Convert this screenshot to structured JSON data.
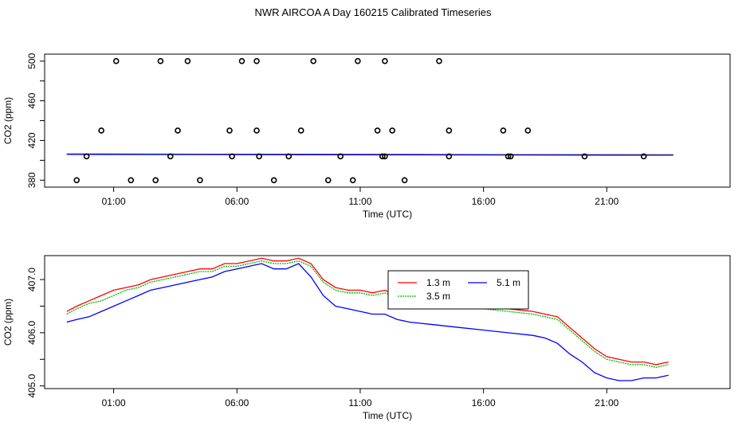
{
  "title": "NWR AIRCOA A  Day 160215  Calibrated Timeseries",
  "chart_data": [
    {
      "type": "scatter",
      "xlabel": "Time (UTC)",
      "ylabel": "CO2 (ppm)",
      "x_ticks": [
        "01:00",
        "06:00",
        "11:00",
        "16:00",
        "21:00"
      ],
      "x_tick_hours": [
        1,
        6,
        11,
        16,
        21
      ],
      "y_ticks": [
        380,
        420,
        460,
        500
      ],
      "y_minor_ticks": [
        400,
        440,
        480
      ],
      "ylim": [
        373,
        507
      ],
      "xlim": [
        -1.8,
        26.0
      ],
      "points_500": [
        1.1,
        2.9,
        4.0,
        6.2,
        6.8,
        9.1,
        10.9,
        12.0,
        14.2
      ],
      "points_430": [
        0.5,
        3.6,
        5.7,
        6.8,
        8.6,
        11.7,
        12.3,
        14.6,
        16.8,
        17.8
      ],
      "points_404": [
        -0.1,
        3.3,
        5.8,
        6.9,
        8.1,
        10.2,
        11.9,
        12.0,
        14.6,
        17.0,
        17.1,
        20.1,
        22.5
      ],
      "points_380": [
        -0.5,
        1.7,
        2.7,
        4.5,
        7.5,
        9.7,
        10.7,
        12.8
      ],
      "series": [
        {
          "name": "1.3 m",
          "color": "#ff0000",
          "x": [
            -0.9,
            23.7
          ],
          "y": [
            406.4,
            405.6
          ]
        },
        {
          "name": "3.5 m",
          "color": "#00bb00",
          "x": [
            -0.9,
            23.7
          ],
          "y": [
            406.3,
            405.5
          ]
        },
        {
          "name": "5.1 m",
          "color": "#0000ff",
          "x": [
            -0.9,
            23.7
          ],
          "y": [
            406.0,
            405.2
          ]
        }
      ]
    },
    {
      "type": "line",
      "xlabel": "Time (UTC)",
      "ylabel": "CO2 (ppm)",
      "x_ticks": [
        "01:00",
        "06:00",
        "11:00",
        "16:00",
        "21:00"
      ],
      "x_tick_hours": [
        1,
        6,
        11,
        16,
        21
      ],
      "y_ticks": [
        405.0,
        406.0,
        407.0
      ],
      "y_tick_labels": [
        "405.0",
        "406.0",
        "407.0"
      ],
      "y_minor_ticks": [
        405.5,
        406.5
      ],
      "ylim": [
        404.95,
        407.45
      ],
      "xlim": [
        -1.8,
        26.0
      ],
      "legend": {
        "position": "top-center",
        "entries": [
          "1.3 m",
          "3.5 m",
          "5.1 m"
        ]
      },
      "series": [
        {
          "name": "1.3 m",
          "color": "#ff0000",
          "x": [
            -0.9,
            -0.5,
            0,
            0.5,
            1,
            1.5,
            2,
            2.5,
            3,
            3.5,
            4,
            4.5,
            5,
            5.5,
            6,
            6.5,
            7,
            7.5,
            8,
            8.5,
            9,
            9.5,
            10,
            10.5,
            11,
            11.5,
            12,
            12.5,
            13,
            14,
            15,
            16,
            17,
            18,
            18.5,
            19,
            19.5,
            20,
            20.5,
            21,
            21.5,
            22,
            22.5,
            23,
            23.5
          ],
          "y": [
            406.4,
            406.5,
            406.6,
            406.7,
            406.8,
            406.85,
            406.9,
            407.0,
            407.05,
            407.1,
            407.15,
            407.2,
            407.2,
            407.3,
            407.3,
            407.35,
            407.4,
            407.35,
            407.35,
            407.4,
            407.3,
            407.0,
            406.85,
            406.8,
            406.8,
            406.75,
            406.8,
            406.7,
            406.65,
            406.6,
            406.6,
            406.5,
            406.45,
            406.4,
            406.35,
            406.3,
            406.1,
            405.9,
            405.7,
            405.55,
            405.5,
            405.45,
            405.45,
            405.4,
            405.45
          ]
        },
        {
          "name": "3.5 m",
          "color": "#00bb00",
          "x": [
            -0.9,
            -0.5,
            0,
            0.5,
            1,
            1.5,
            2,
            2.5,
            3,
            3.5,
            4,
            4.5,
            5,
            5.5,
            6,
            6.5,
            7,
            7.5,
            8,
            8.5,
            9,
            9.5,
            10,
            10.5,
            11,
            11.5,
            12,
            12.5,
            13,
            14,
            15,
            16,
            17,
            18,
            18.5,
            19,
            19.5,
            20,
            20.5,
            21,
            21.5,
            22,
            22.5,
            23,
            23.5
          ],
          "y": [
            406.35,
            406.45,
            406.55,
            406.6,
            406.7,
            406.8,
            406.85,
            406.95,
            407.0,
            407.05,
            407.1,
            407.15,
            407.15,
            407.25,
            407.25,
            407.3,
            407.35,
            407.3,
            407.3,
            407.35,
            407.25,
            406.95,
            406.8,
            406.75,
            406.75,
            406.7,
            406.75,
            406.65,
            406.6,
            406.55,
            406.55,
            406.45,
            406.4,
            406.35,
            406.3,
            406.25,
            406.05,
            405.85,
            405.65,
            405.5,
            405.45,
            405.4,
            405.4,
            405.35,
            405.4
          ]
        },
        {
          "name": "5.1 m",
          "color": "#0000ff",
          "x": [
            -0.9,
            -0.5,
            0,
            0.5,
            1,
            1.5,
            2,
            2.5,
            3,
            3.5,
            4,
            4.5,
            5,
            5.5,
            6,
            6.5,
            7,
            7.5,
            8,
            8.5,
            9,
            9.5,
            10,
            10.5,
            11,
            11.5,
            12,
            12.5,
            13,
            14,
            15,
            16,
            17,
            18,
            18.5,
            19,
            19.5,
            20,
            20.5,
            21,
            21.5,
            22,
            22.5,
            23,
            23.5
          ],
          "y": [
            406.2,
            406.25,
            406.3,
            406.4,
            406.5,
            406.6,
            406.7,
            406.8,
            406.85,
            406.9,
            406.95,
            407.0,
            407.05,
            407.15,
            407.2,
            407.25,
            407.3,
            407.2,
            407.2,
            407.3,
            407.05,
            406.7,
            406.5,
            406.45,
            406.4,
            406.35,
            406.35,
            406.25,
            406.2,
            406.15,
            406.1,
            406.05,
            406.0,
            405.95,
            405.9,
            405.8,
            405.6,
            405.45,
            405.25,
            405.15,
            405.1,
            405.1,
            405.15,
            405.15,
            405.2
          ]
        }
      ]
    }
  ]
}
